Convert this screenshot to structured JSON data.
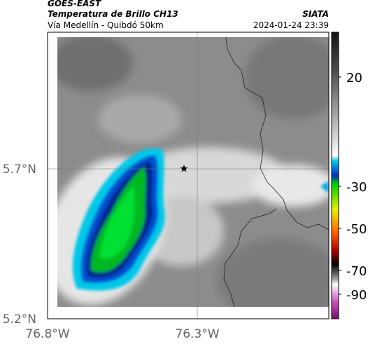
{
  "header": {
    "title": "GOES-EAST",
    "subtitle": "Temperatura de Brillo CH13",
    "location": "Vía Medellín - Quibdó 50km",
    "source": "SIATA",
    "datetime": "2024-01-24 23:39"
  },
  "map": {
    "lat_labels": [
      "5.7°N",
      "5.2°N"
    ],
    "lon_labels": [
      "76.8°W",
      "76.3°W"
    ]
  },
  "colorbar": {
    "ticks": [
      20,
      -30,
      -50,
      -70,
      -90
    ]
  }
}
